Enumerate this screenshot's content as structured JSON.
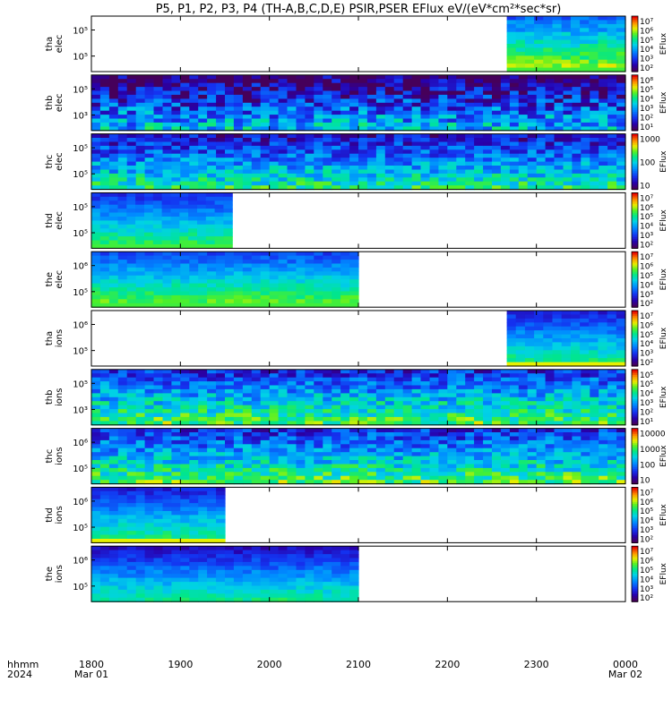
{
  "title": "P5, P1, P2, P3, P4 (TH-A,B,C,D,E) PSIR,PSER EFlux eV/(eV*cm²*sec*sr)",
  "footer": {
    "row1_label": "hhmm",
    "row2_label": "2024",
    "ticks": [
      {
        "hhmm": "1800",
        "date": "Mar 01"
      },
      {
        "hhmm": "1900",
        "date": ""
      },
      {
        "hhmm": "2000",
        "date": ""
      },
      {
        "hhmm": "2100",
        "date": ""
      },
      {
        "hhmm": "2200",
        "date": ""
      },
      {
        "hhmm": "2300",
        "date": ""
      },
      {
        "hhmm": "0000",
        "date": "Mar 02"
      }
    ]
  },
  "chart_data": {
    "type": "heatmap",
    "x_range": [
      "2024-03-01 18:00",
      "2024-03-02 00:00"
    ],
    "x_label": "hhmm",
    "colorbar_label": "EFlux",
    "panels": [
      {
        "id": "tha-elec",
        "label1": "tha",
        "label2": "elec",
        "ylabels": [
          "10⁵",
          "10⁵"
        ],
        "data_start": "22:40",
        "data_end": "24:00",
        "base": 0.55,
        "noise": 0.08,
        "floor": "green",
        "colorbar": [
          "10⁷",
          "10⁶",
          "10⁵",
          "10⁴",
          "10³",
          "10²"
        ],
        "cb_title": "EFlux"
      },
      {
        "id": "thb-elec",
        "label1": "thb",
        "label2": "elec",
        "ylabels": [
          "10⁵",
          "10³"
        ],
        "data_start": "18:00",
        "data_end": "24:00",
        "base": 0.25,
        "noise": 0.2,
        "floor": "none",
        "colorbar": [
          "10⁸",
          "10⁵",
          "10⁴",
          "10³",
          "10²",
          "10¹"
        ],
        "cb_title": "EFlux"
      },
      {
        "id": "thc-elec",
        "label1": "thc",
        "label2": "elec",
        "ylabels": [
          "10⁵",
          "10⁵"
        ],
        "data_start": "18:00",
        "data_end": "24:00",
        "base": 0.38,
        "noise": 0.15,
        "floor": "none",
        "colorbar": [
          "1000",
          "100",
          "10"
        ],
        "cb_title": "EFlux"
      },
      {
        "id": "thd-elec",
        "label1": "thd",
        "label2": "elec",
        "ylabels": [
          "10⁵",
          "10⁵"
        ],
        "data_start": "18:00",
        "data_end": "19:35",
        "base": 0.45,
        "noise": 0.06,
        "floor": "green",
        "colorbar": [
          "10⁷",
          "10⁶",
          "10⁵",
          "10⁴",
          "10³",
          "10²"
        ],
        "cb_title": "EFlux"
      },
      {
        "id": "the-elec",
        "label1": "the",
        "label2": "elec",
        "ylabels": [
          "10⁶",
          "10⁵"
        ],
        "data_start": "18:00",
        "data_end": "21:00",
        "base": 0.5,
        "noise": 0.06,
        "floor": "green",
        "colorbar": [
          "10⁷",
          "10⁶",
          "10⁵",
          "10⁴",
          "10³",
          "10²"
        ],
        "cb_title": "EFlux"
      },
      {
        "id": "tha-ions",
        "label1": "tha",
        "label2": "ions",
        "ylabels": [
          "10⁶",
          "10⁵"
        ],
        "data_start": "22:40",
        "data_end": "24:00",
        "base": 0.42,
        "noise": 0.06,
        "floor": "yellow",
        "colorbar": [
          "10⁷",
          "10⁶",
          "10⁵",
          "10⁴",
          "10³",
          "10²"
        ],
        "cb_title": "EFlux"
      },
      {
        "id": "thb-ions",
        "label1": "thb",
        "label2": "ions",
        "ylabels": [
          "10⁵",
          "10³"
        ],
        "data_start": "18:00",
        "data_end": "24:00",
        "base": 0.45,
        "noise": 0.15,
        "floor": "none",
        "colorbar": [
          "10⁵",
          "10⁵",
          "10⁴",
          "10³",
          "10²",
          "10¹"
        ],
        "cb_title": "EFlux"
      },
      {
        "id": "thc-ions",
        "label1": "thc",
        "label2": "ions",
        "ylabels": [
          "10⁶",
          "10⁵"
        ],
        "data_start": "18:00",
        "data_end": "24:00",
        "base": 0.45,
        "noise": 0.15,
        "floor": "none",
        "colorbar": [
          "10000",
          "1000",
          "100",
          "10"
        ],
        "cb_title": "EFlux"
      },
      {
        "id": "thd-ions",
        "label1": "thd",
        "label2": "ions",
        "ylabels": [
          "10⁶",
          "10⁵"
        ],
        "data_start": "18:00",
        "data_end": "19:30",
        "base": 0.42,
        "noise": 0.06,
        "floor": "yellow",
        "colorbar": [
          "10⁷",
          "10⁶",
          "10⁵",
          "10⁴",
          "10³",
          "10²"
        ],
        "cb_title": "EFlux"
      },
      {
        "id": "the-ions",
        "label1": "the",
        "label2": "ions",
        "ylabels": [
          "10⁶",
          "10⁵"
        ],
        "data_start": "18:00",
        "data_end": "21:00",
        "base": 0.38,
        "noise": 0.06,
        "floor": "none",
        "colorbar": [
          "10⁷",
          "10⁶",
          "10⁵",
          "10⁴",
          "10³",
          "10²"
        ],
        "cb_title": "EFlux"
      }
    ]
  }
}
